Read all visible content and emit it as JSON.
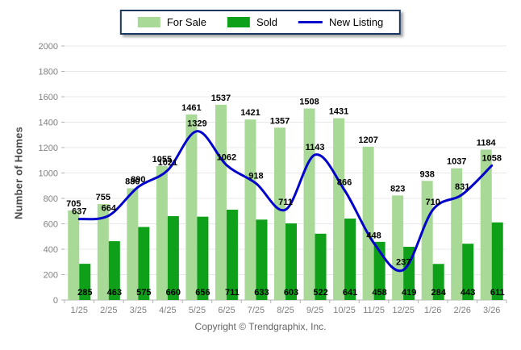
{
  "legend": {
    "for_sale_label": "For Sale",
    "sold_label": "Sold",
    "new_listing_label": "New Listing"
  },
  "colors": {
    "for_sale": "#a8d996",
    "sold": "#0fa019",
    "new_listing": "#0000cc",
    "legend_border": "#17375e",
    "grid": "#e8e8e8",
    "axis": "#b3b3b3",
    "tick_text": "#808080",
    "label_text": "#000000"
  },
  "chart_data": {
    "type": "bar+line",
    "title": "",
    "ylabel": "Number of Homes",
    "xlabel": "",
    "ylim": [
      0,
      2000
    ],
    "ytick_step": 200,
    "grid": true,
    "legend_position": "top-center",
    "categories": [
      "1/25",
      "2/25",
      "3/25",
      "4/25",
      "5/25",
      "6/25",
      "7/25",
      "8/25",
      "9/25",
      "10/25",
      "11/25",
      "12/25",
      "1/26",
      "2/26",
      "3/26"
    ],
    "series": [
      {
        "name": "For Sale",
        "type": "bar",
        "color": "#a8d996",
        "values": [
          705,
          755,
          880,
          1055,
          1461,
          1537,
          1421,
          1357,
          1508,
          1431,
          1207,
          823,
          938,
          1037,
          1184
        ]
      },
      {
        "name": "Sold",
        "type": "bar",
        "color": "#0fa019",
        "values": [
          285,
          463,
          575,
          660,
          656,
          711,
          633,
          603,
          522,
          641,
          458,
          419,
          284,
          443,
          611
        ]
      },
      {
        "name": "New Listing",
        "type": "line",
        "color": "#0000cc",
        "values": [
          637,
          664,
          890,
          1021,
          1329,
          1062,
          918,
          711,
          1143,
          866,
          448,
          237,
          710,
          831,
          1058
        ]
      }
    ]
  },
  "footer": {
    "copyright": "Copyright © Trendgraphix, Inc."
  }
}
